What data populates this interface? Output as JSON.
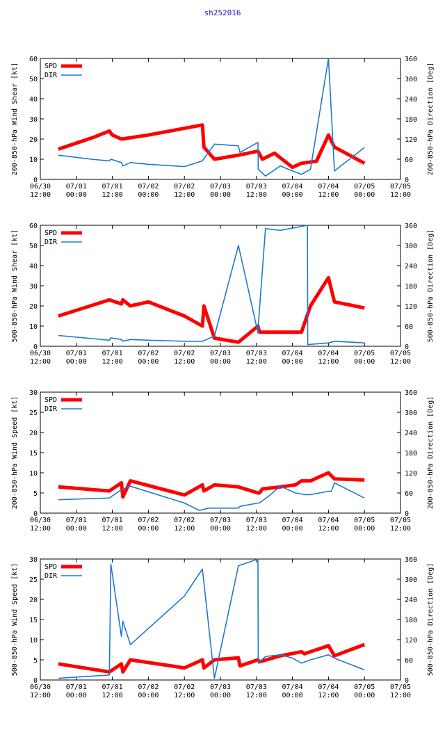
{
  "page": {
    "title": "sh252016"
  },
  "colors": {
    "spd": "#ff0000",
    "dir": "#1e78d2",
    "frame": "#000000"
  },
  "chart_data": [
    {
      "type": "line",
      "ylabel_left": "200-850-hPa Wind Shear [kt]",
      "ylabel_right": "200-850-hPa Direction [Deg]",
      "ylim_left": [
        0,
        60
      ],
      "ylim_right": [
        0,
        360
      ],
      "yticks_left": [
        "0",
        "10",
        "20",
        "30",
        "40",
        "50",
        "60"
      ],
      "yticks_right": [
        "0",
        "60",
        "120",
        "180",
        "240",
        "300",
        "360"
      ],
      "xlim_hours": [
        0,
        120
      ],
      "xticks": [
        [
          "06/30",
          "12:00"
        ],
        [
          "07/01",
          "00:00"
        ],
        [
          "07/01",
          "12:00"
        ],
        [
          "07/02",
          "00:00"
        ],
        [
          "07/02",
          "12:00"
        ],
        [
          "07/03",
          "00:00"
        ],
        [
          "07/03",
          "12:00"
        ],
        [
          "07/04",
          "00:00"
        ],
        [
          "07/04",
          "12:00"
        ],
        [
          "07/05",
          "00:00"
        ],
        [
          "07/05",
          "12:00"
        ]
      ],
      "legend": [
        "SPD",
        "DIR"
      ],
      "series": [
        {
          "name": "SPD",
          "axis": "left",
          "x": [
            6,
            18,
            23,
            24,
            27,
            36,
            54,
            54.5,
            58,
            66,
            72.5,
            74,
            78,
            84,
            87,
            92,
            96,
            98,
            108
          ],
          "y": [
            15,
            21,
            24,
            22,
            20,
            22,
            27,
            16,
            10,
            12,
            14,
            10,
            13,
            6,
            8,
            9,
            22,
            16,
            8
          ]
        },
        {
          "name": "DIR",
          "axis": "right",
          "x": [
            6,
            17,
            23,
            23.5,
            27,
            27.5,
            30,
            36,
            48,
            54,
            58,
            66,
            66.5,
            72.5,
            72.6,
            75,
            80,
            84,
            87,
            90,
            96,
            98,
            108
          ],
          "y": [
            72,
            60,
            55,
            60,
            50,
            40,
            50,
            45,
            38,
            55,
            105,
            100,
            80,
            110,
            30,
            10,
            40,
            25,
            15,
            30,
            360,
            25,
            95
          ]
        }
      ]
    },
    {
      "type": "line",
      "ylabel_left": "500-850-hPa Wind Shear [kt]",
      "ylabel_right": "500-850-hPa Direction [Deg]",
      "ylim_left": [
        0,
        60
      ],
      "ylim_right": [
        0,
        360
      ],
      "yticks_left": [
        "0",
        "10",
        "20",
        "30",
        "40",
        "50",
        "60"
      ],
      "yticks_right": [
        "0",
        "60",
        "120",
        "180",
        "240",
        "300",
        "360"
      ],
      "xlim_hours": [
        0,
        120
      ],
      "xticks": [
        [
          "06/30",
          "12:00"
        ],
        [
          "07/01",
          "00:00"
        ],
        [
          "07/01",
          "12:00"
        ],
        [
          "07/02",
          "00:00"
        ],
        [
          "07/02",
          "12:00"
        ],
        [
          "07/03",
          "00:00"
        ],
        [
          "07/03",
          "12:00"
        ],
        [
          "07/04",
          "00:00"
        ],
        [
          "07/04",
          "12:00"
        ],
        [
          "07/05",
          "00:00"
        ],
        [
          "07/05",
          "12:00"
        ]
      ],
      "legend": [
        "SPD",
        "DIR"
      ],
      "series": [
        {
          "name": "SPD",
          "axis": "left",
          "x": [
            6,
            23,
            27,
            27.5,
            30,
            36,
            48,
            54,
            54.5,
            58,
            66,
            72.5,
            73,
            75,
            80,
            87,
            90,
            96,
            98,
            108
          ],
          "y": [
            15,
            23,
            21,
            23,
            20,
            22,
            15,
            10,
            20,
            4,
            2,
            10,
            7,
            7,
            7,
            7,
            20,
            34,
            22,
            19
          ]
        },
        {
          "name": "DIR",
          "axis": "right",
          "x": [
            6,
            23,
            23.5,
            27,
            27.5,
            30,
            36,
            48,
            54,
            58,
            66,
            72.5,
            72.6,
            75,
            80,
            89,
            89.1,
            96,
            98,
            108
          ],
          "y": [
            32,
            18,
            25,
            20,
            15,
            20,
            18,
            15,
            15,
            30,
            300,
            40,
            60,
            350,
            345,
            360,
            5,
            10,
            15,
            10
          ]
        }
      ]
    },
    {
      "type": "line",
      "ylabel_left": "200-850-hPa Wind Speed [kt]",
      "ylabel_right": "200-850-hPa Direction [Deg]",
      "ylim_left": [
        0,
        30
      ],
      "ylim_right": [
        0,
        360
      ],
      "yticks_left": [
        "0",
        "5",
        "10",
        "15",
        "20",
        "25",
        "30"
      ],
      "yticks_right": [
        "0",
        "60",
        "120",
        "180",
        "240",
        "300",
        "360"
      ],
      "xlim_hours": [
        0,
        120
      ],
      "xticks": [
        [
          "06/30",
          "12:00"
        ],
        [
          "07/01",
          "00:00"
        ],
        [
          "07/01",
          "12:00"
        ],
        [
          "07/02",
          "00:00"
        ],
        [
          "07/02",
          "12:00"
        ],
        [
          "07/03",
          "00:00"
        ],
        [
          "07/03",
          "12:00"
        ],
        [
          "07/04",
          "00:00"
        ],
        [
          "07/04",
          "12:00"
        ],
        [
          "07/05",
          "00:00"
        ],
        [
          "07/05",
          "12:00"
        ]
      ],
      "legend": [
        "SPD",
        "DIR"
      ],
      "series": [
        {
          "name": "SPD",
          "axis": "left",
          "x": [
            6,
            23,
            27,
            27.5,
            30,
            48,
            54,
            54.5,
            58,
            66,
            72.5,
            73,
            74,
            80,
            85,
            87,
            90,
            96,
            98,
            108
          ],
          "y": [
            6.5,
            5.5,
            7.5,
            4,
            8,
            4.5,
            7,
            5.5,
            7,
            6.5,
            5,
            5,
            6,
            6.5,
            7,
            8,
            8,
            10,
            8.5,
            8.2
          ]
        },
        {
          "name": "DIR",
          "axis": "right",
          "x": [
            6,
            23,
            27,
            30,
            48,
            53,
            54,
            56,
            66,
            66.5,
            72.5,
            73,
            76,
            80,
            85,
            88,
            90,
            96,
            97,
            98,
            108
          ],
          "y": [
            40,
            45,
            70,
            80,
            30,
            8,
            10,
            15,
            15,
            20,
            30,
            30,
            50,
            80,
            60,
            55,
            55,
            65,
            65,
            90,
            45
          ]
        }
      ]
    },
    {
      "type": "line",
      "ylabel_left": "500-850-hPa Wind Speed [kt]",
      "ylabel_right": "500-850-hPa Direction [Deg]",
      "ylim_left": [
        0,
        30
      ],
      "ylim_right": [
        0,
        360
      ],
      "yticks_left": [
        "0",
        "5",
        "10",
        "15",
        "20",
        "25",
        "30"
      ],
      "yticks_right": [
        "0",
        "60",
        "120",
        "180",
        "240",
        "300",
        "360"
      ],
      "xlim_hours": [
        0,
        120
      ],
      "xticks": [
        [
          "06/30",
          "12:00"
        ],
        [
          "07/01",
          "00:00"
        ],
        [
          "07/01",
          "12:00"
        ],
        [
          "07/02",
          "00:00"
        ],
        [
          "07/02",
          "12:00"
        ],
        [
          "07/03",
          "00:00"
        ],
        [
          "07/03",
          "12:00"
        ],
        [
          "07/04",
          "00:00"
        ],
        [
          "07/04",
          "12:00"
        ],
        [
          "07/05",
          "00:00"
        ],
        [
          "07/05",
          "12:00"
        ]
      ],
      "legend": [
        "SPD",
        "DIR"
      ],
      "series": [
        {
          "name": "SPD",
          "axis": "left",
          "x": [
            6,
            23,
            27,
            27.5,
            30,
            48,
            54,
            54.5,
            58,
            66,
            66.5,
            72.5,
            73,
            80,
            87,
            88,
            96,
            98,
            108
          ],
          "y": [
            4,
            2,
            4,
            2,
            5,
            3,
            5,
            3,
            5,
            5.5,
            3.5,
            5,
            4.5,
            6,
            7,
            6.5,
            8.5,
            6,
            8.8
          ]
        },
        {
          "name": "DIR",
          "axis": "right",
          "x": [
            6,
            23,
            23.5,
            27,
            27.5,
            30,
            48,
            54,
            58,
            66,
            72.5,
            72.6,
            75,
            80,
            84,
            87,
            90,
            96,
            98,
            108
          ],
          "y": [
            5,
            15,
            345,
            130,
            175,
            105,
            250,
            330,
            5,
            340,
            360,
            50,
            70,
            75,
            65,
            50,
            60,
            75,
            65,
            30
          ]
        }
      ]
    }
  ]
}
